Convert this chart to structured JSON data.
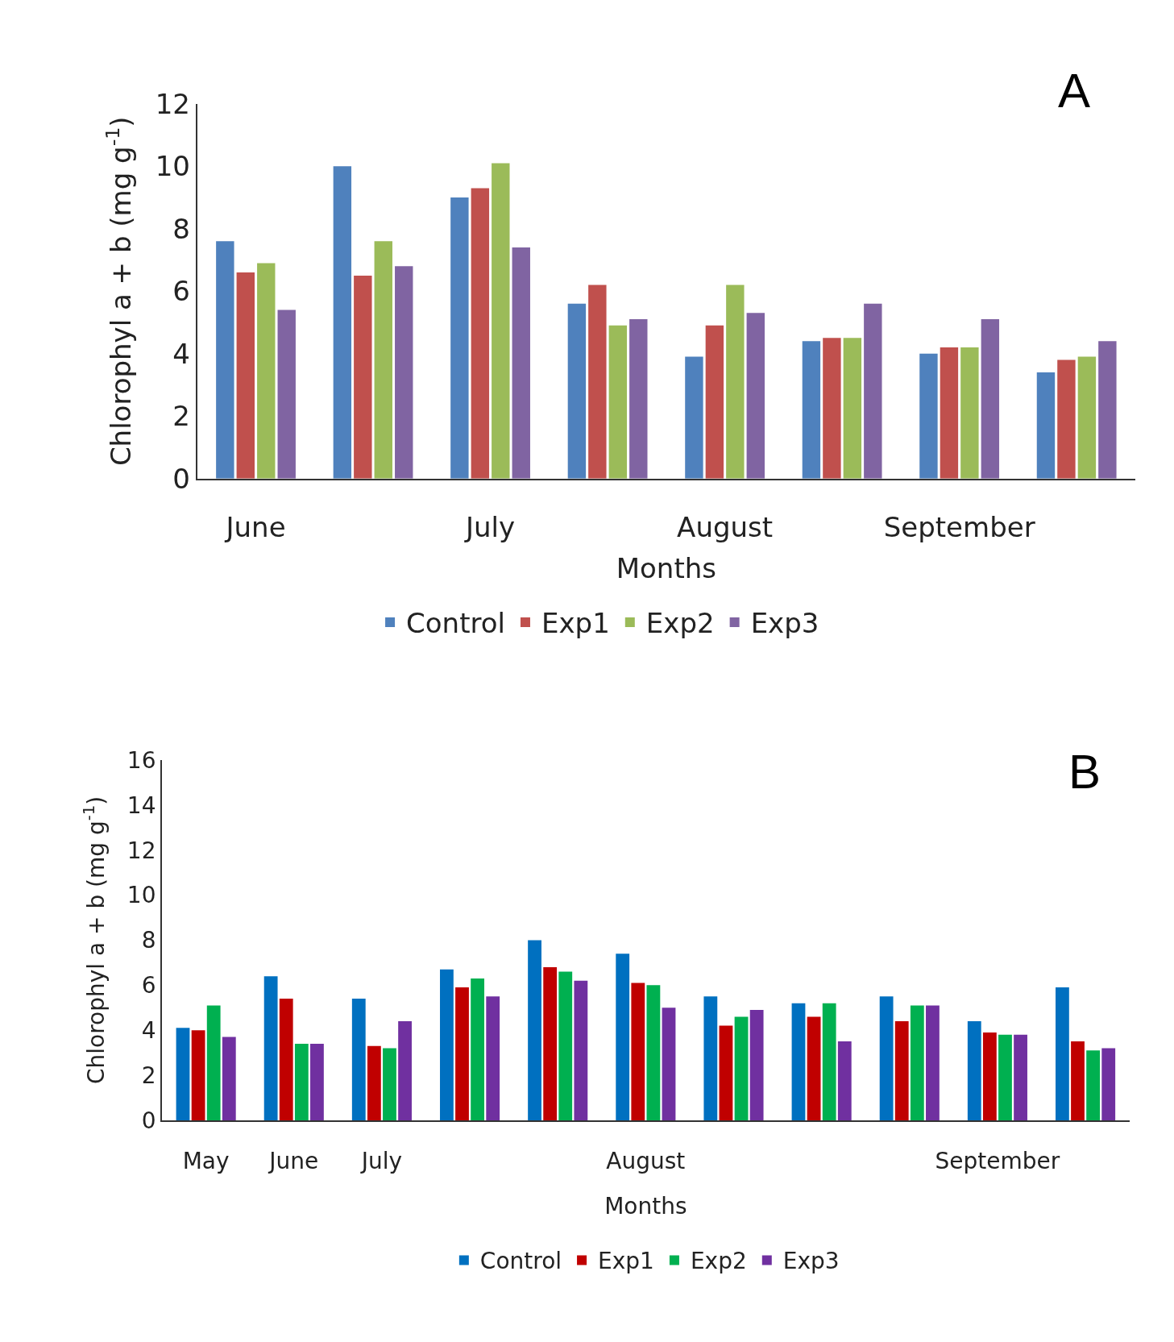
{
  "chart_data": [
    {
      "type": "bar",
      "annotations": [
        "A"
      ],
      "xlabel": "Months",
      "ylabel": "Chlorophyl a + b (mg g$^{-1}$)",
      "categories": [
        "June",
        null,
        "July",
        null,
        "August",
        null,
        "September",
        null
      ],
      "ylim": [
        0,
        12
      ],
      "yticks": [
        0,
        2,
        4,
        6,
        8,
        10,
        12
      ],
      "legend": "bottom",
      "series": [
        {
          "name": "Control",
          "color": "#4f81bd",
          "values": [
            7.6,
            10.0,
            9.0,
            5.6,
            3.9,
            4.4,
            4.0,
            3.4
          ]
        },
        {
          "name": "Exp1",
          "color": "#c0504d",
          "values": [
            6.6,
            6.5,
            9.3,
            6.2,
            4.9,
            4.5,
            4.2,
            3.8
          ]
        },
        {
          "name": "Exp2",
          "color": "#9bbb59",
          "values": [
            6.9,
            7.6,
            10.1,
            4.9,
            6.2,
            4.5,
            4.2,
            3.9
          ]
        },
        {
          "name": "Exp3",
          "color": "#8064a2",
          "values": [
            5.4,
            6.8,
            7.4,
            5.1,
            5.3,
            5.6,
            5.1,
            4.4
          ]
        }
      ]
    },
    {
      "type": "bar",
      "annotations": [
        "B"
      ],
      "xlabel": "Months",
      "ylabel": "Chlorophyl a + b (mg g$^{-1}$)",
      "categories": [
        "May",
        "June",
        "July",
        null,
        null,
        "August",
        null,
        null,
        null,
        "September",
        null
      ],
      "ylim": [
        0,
        16
      ],
      "yticks": [
        0,
        2,
        4,
        6,
        8,
        10,
        12,
        14,
        16
      ],
      "legend": "bottom",
      "series": [
        {
          "name": "Control",
          "color": "#0070c0",
          "values": [
            4.1,
            6.4,
            5.4,
            6.7,
            8.0,
            7.4,
            5.5,
            5.2,
            5.5,
            4.4,
            5.9
          ]
        },
        {
          "name": "Exp1",
          "color": "#c00000",
          "values": [
            4.0,
            5.4,
            3.3,
            5.9,
            6.8,
            6.1,
            4.2,
            4.6,
            4.4,
            3.9,
            3.5
          ]
        },
        {
          "name": "Exp2",
          "color": "#00b050",
          "values": [
            5.1,
            3.4,
            3.2,
            6.3,
            6.6,
            6.0,
            4.6,
            5.2,
            5.1,
            3.8,
            3.1
          ]
        },
        {
          "name": "Exp3",
          "color": "#7030a0",
          "values": [
            3.7,
            3.4,
            4.4,
            5.5,
            6.2,
            5.0,
            4.9,
            3.5,
            5.1,
            3.8,
            3.2
          ]
        }
      ]
    }
  ]
}
